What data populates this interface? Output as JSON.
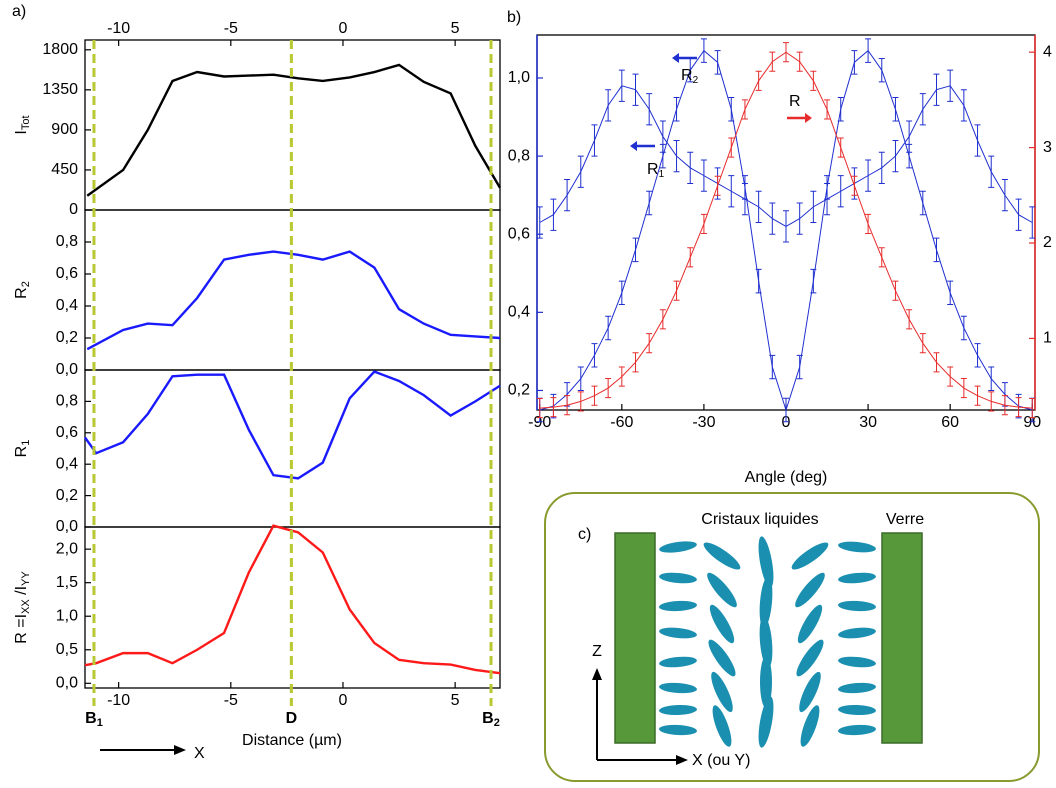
{
  "chart_data": [
    {
      "type": "line",
      "label": "a)",
      "xaxis": "top",
      "ylabel": [
        {
          "text": "I"
        },
        {
          "text": "Tot",
          "sub": true
        }
      ],
      "xlim": [
        -11.5,
        7
      ],
      "xticks": [
        -10,
        -5,
        0,
        5
      ],
      "ylim": [
        0,
        1910
      ],
      "yticks": [
        0,
        450,
        900,
        1350,
        1800
      ],
      "x": [
        -11.4,
        -9.8,
        -8.7,
        -7.6,
        -6.5,
        -5.3,
        -4.2,
        -3.1,
        -2.0,
        -0.9,
        0.3,
        1.4,
        2.5,
        3.6,
        4.8,
        5.9,
        7.0
      ],
      "series": [
        {
          "color": "#000000",
          "values": [
            160,
            450,
            900,
            1450,
            1550,
            1500,
            1510,
            1520,
            1480,
            1450,
            1490,
            1550,
            1630,
            1440,
            1310,
            720,
            250
          ]
        }
      ]
    },
    {
      "type": "line",
      "ylabel": [
        {
          "text": "R"
        },
        {
          "text": "2",
          "sub": true
        }
      ],
      "xlim": [
        -11.5,
        7
      ],
      "ylim": [
        0,
        1.0
      ],
      "yticks": [
        {
          "value": 0,
          "label": "0,0"
        },
        {
          "value": 0.2,
          "label": "0,2"
        },
        {
          "value": 0.4,
          "label": "0,4"
        },
        {
          "value": 0.6,
          "label": "0,6"
        },
        {
          "value": 0.8,
          "label": "0,8"
        }
      ],
      "x": [
        -11.4,
        -9.8,
        -8.7,
        -7.6,
        -6.5,
        -5.3,
        -4.2,
        -3.1,
        -2.0,
        -0.9,
        0.3,
        1.4,
        2.5,
        3.6,
        4.8,
        5.9,
        7.0
      ],
      "series": [
        {
          "color": "#1a1aff",
          "values": [
            0.13,
            0.25,
            0.29,
            0.28,
            0.45,
            0.69,
            0.72,
            0.74,
            0.72,
            0.69,
            0.74,
            0.64,
            0.38,
            0.29,
            0.22,
            0.21,
            0.2
          ]
        }
      ]
    },
    {
      "type": "line",
      "ylabel": [
        {
          "text": "R"
        },
        {
          "text": "1",
          "sub": true
        }
      ],
      "xlim": [
        -11.5,
        7
      ],
      "ylim": [
        0,
        1.0
      ],
      "yticks": [
        {
          "value": 0,
          "label": "0,0"
        },
        {
          "value": 0.2,
          "label": "0,2"
        },
        {
          "value": 0.4,
          "label": "0,4"
        },
        {
          "value": 0.6,
          "label": "0,6"
        },
        {
          "value": 0.8,
          "label": "0,8"
        }
      ],
      "x": [
        -11.5,
        -11.0,
        -9.8,
        -8.7,
        -7.6,
        -6.5,
        -5.3,
        -4.2,
        -3.1,
        -2.0,
        -0.9,
        0.3,
        1.4,
        2.5,
        3.6,
        4.8,
        5.9,
        7.0
      ],
      "series": [
        {
          "color": "#1a1aff",
          "values": [
            0.57,
            0.47,
            0.54,
            0.72,
            0.96,
            0.97,
            0.97,
            0.62,
            0.33,
            0.31,
            0.41,
            0.82,
            0.99,
            0.93,
            0.84,
            0.71,
            0.8,
            0.9
          ]
        }
      ]
    },
    {
      "type": "line",
      "xaxis": "bottom",
      "xlabel": "Distance (µm)",
      "direction_label": "X",
      "ylabel": [
        {
          "text": "R =I"
        },
        {
          "text": "XX",
          "sub": true
        },
        {
          "text": " /I"
        },
        {
          "text": "YY",
          "sub": true
        }
      ],
      "xlim": [
        -11.5,
        7
      ],
      "xticks": [
        -10,
        -5,
        0,
        5
      ],
      "ylim": [
        -0.07,
        2.33
      ],
      "yticks": [
        {
          "value": 0,
          "label": "0,0"
        },
        {
          "value": 0.5,
          "label": "0,5"
        },
        {
          "value": 1.0,
          "label": "1,0"
        },
        {
          "value": 1.5,
          "label": "1,5"
        },
        {
          "value": 2.0,
          "label": "2,0"
        }
      ],
      "x": [
        -11.5,
        -11.0,
        -9.8,
        -8.7,
        -7.6,
        -6.5,
        -5.3,
        -4.2,
        -3.1,
        -2.0,
        -0.9,
        0.3,
        1.4,
        2.5,
        3.6,
        4.8,
        5.9,
        7.0
      ],
      "series": [
        {
          "color": "#ff1a1a",
          "values": [
            0.27,
            0.3,
            0.45,
            0.45,
            0.3,
            0.5,
            0.75,
            1.65,
            2.35,
            2.25,
            1.95,
            1.1,
            0.6,
            0.35,
            0.3,
            0.28,
            0.2,
            0.15
          ]
        }
      ],
      "markers": [
        {
          "x": -11.1,
          "text": "B",
          "sub": "1"
        },
        {
          "x": -2.3,
          "text": "D"
        },
        {
          "x": 6.6,
          "text": "B",
          "sub": "2"
        }
      ],
      "marker_color": "#b8c832"
    },
    {
      "type": "line",
      "label": "b)",
      "xlabel": "Angle (deg)",
      "xlim": [
        -91,
        91
      ],
      "xticks": [
        -90,
        -60,
        -30,
        0,
        30,
        60,
        90
      ],
      "ylim": [
        0.15,
        1.11
      ],
      "yticks": [
        {
          "value": 0.2,
          "label": "0,2"
        },
        {
          "value": 0.4,
          "label": "0,4"
        },
        {
          "value": 0.6,
          "label": "0,6"
        },
        {
          "value": 0.8,
          "label": "0,8"
        },
        {
          "value": 1.0,
          "label": "1,0"
        }
      ],
      "y2lim": [
        0.25,
        4.18
      ],
      "y2ticks": [
        1,
        2,
        3,
        4
      ],
      "ycolor": "#1f2fd0",
      "y2color": "#e82b2b",
      "x": [
        -90,
        -85,
        -80,
        -75,
        -70,
        -65,
        -60,
        -55,
        -50,
        -45,
        -40,
        -35,
        -30,
        -25,
        -20,
        -15,
        -10,
        -5,
        0,
        5,
        10,
        15,
        20,
        25,
        30,
        35,
        40,
        45,
        50,
        55,
        60,
        65,
        70,
        75,
        80,
        85,
        90
      ],
      "series": [
        {
          "annotation": [
            {
              "text": "R"
            },
            {
              "text": "1",
              "sub": true
            }
          ],
          "arrow": "left",
          "color": "#1f2fd0",
          "error": 0.04,
          "values": [
            0.63,
            0.65,
            0.7,
            0.76,
            0.84,
            0.93,
            0.98,
            0.97,
            0.92,
            0.85,
            0.8,
            0.77,
            0.75,
            0.73,
            0.71,
            0.69,
            0.67,
            0.64,
            0.62,
            0.64,
            0.67,
            0.69,
            0.71,
            0.73,
            0.75,
            0.77,
            0.8,
            0.85,
            0.92,
            0.97,
            0.98,
            0.93,
            0.84,
            0.76,
            0.7,
            0.65,
            0.63
          ]
        },
        {
          "annotation": [
            {
              "text": "R"
            },
            {
              "text": "2",
              "sub": true
            }
          ],
          "arrow": "left",
          "color": "#1f2fd0",
          "error": 0.03,
          "values": [
            0.15,
            0.16,
            0.19,
            0.23,
            0.29,
            0.36,
            0.45,
            0.56,
            0.68,
            0.8,
            0.92,
            1.02,
            1.07,
            1.04,
            0.92,
            0.72,
            0.48,
            0.26,
            0.15,
            0.26,
            0.48,
            0.72,
            0.92,
            1.04,
            1.07,
            1.02,
            0.92,
            0.8,
            0.68,
            0.56,
            0.45,
            0.36,
            0.29,
            0.23,
            0.19,
            0.16,
            0.15
          ]
        },
        {
          "annotation": [
            {
              "text": "R"
            }
          ],
          "arrow": "right",
          "color": "#e82b2b",
          "error": 0.1,
          "axis": "y2",
          "values": [
            0.27,
            0.28,
            0.3,
            0.34,
            0.4,
            0.48,
            0.6,
            0.75,
            0.95,
            1.2,
            1.5,
            1.85,
            2.2,
            2.6,
            3.0,
            3.4,
            3.7,
            3.9,
            4.0,
            3.9,
            3.7,
            3.4,
            3.0,
            2.6,
            2.2,
            1.85,
            1.5,
            1.2,
            0.95,
            0.75,
            0.6,
            0.48,
            0.4,
            0.34,
            0.3,
            0.28,
            0.27
          ]
        }
      ]
    }
  ],
  "diagram": {
    "label": "c)",
    "liquid_crystals": "Cristaux liquides",
    "glass": "Verre",
    "z_axis": "Z",
    "x_axis": "X (ou Y)"
  }
}
